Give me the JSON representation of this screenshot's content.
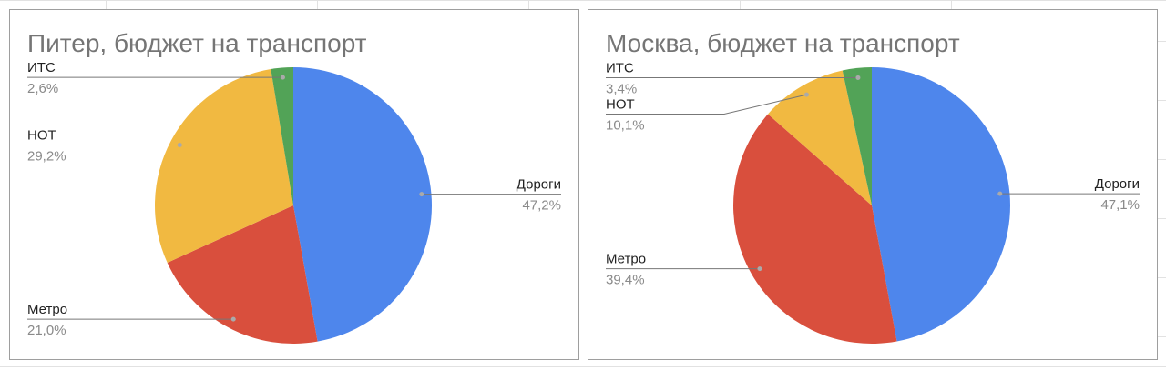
{
  "chart_data": [
    {
      "type": "pie",
      "title": "Питер, бюджет на транспорт",
      "categories": [
        "Дороги",
        "Метро",
        "НОТ",
        "ИТС"
      ],
      "values": [
        47.2,
        21.0,
        29.2,
        2.6
      ],
      "value_labels": [
        "47,2%",
        "21,0%",
        "29,2%",
        "2,6%"
      ],
      "colors": [
        "#4e86ec",
        "#d94f3d",
        "#f1b941",
        "#52a357"
      ]
    },
    {
      "type": "pie",
      "title": "Москва, бюджет на транспорт",
      "categories": [
        "Дороги",
        "Метро",
        "НОТ",
        "ИТС"
      ],
      "values": [
        47.1,
        39.4,
        10.1,
        3.4
      ],
      "value_labels": [
        "47,1%",
        "39,4%",
        "10,1%",
        "3,4%"
      ],
      "colors": [
        "#4e86ec",
        "#d94f3d",
        "#f1b941",
        "#52a357"
      ]
    }
  ]
}
